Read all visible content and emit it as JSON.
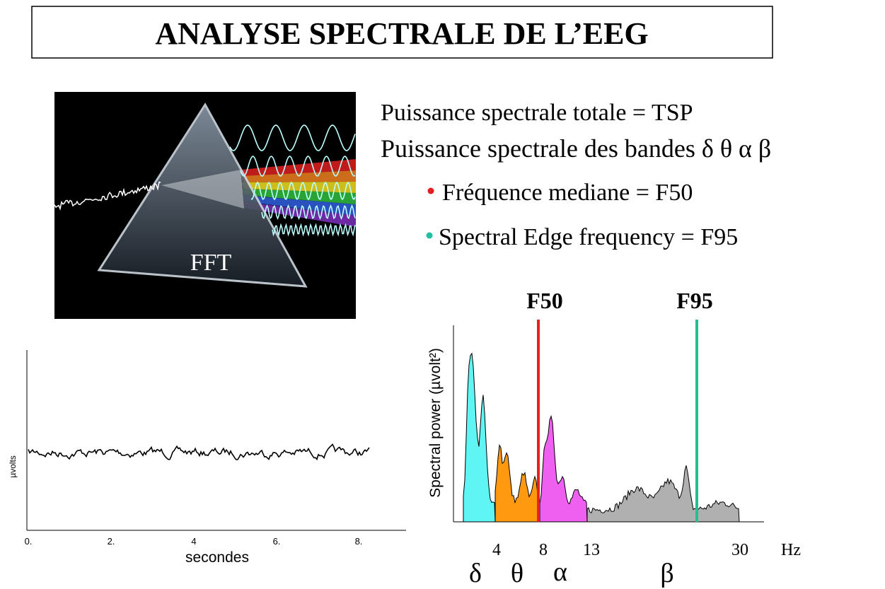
{
  "title": "ANALYSE SPECTRALE DE L’EEG",
  "prism": {
    "label": "FFT"
  },
  "definitions": [
    "Puissance spectrale totale = TSP",
    "Puissance spectrale des bandes δ θ α β"
  ],
  "bullets": [
    "Fréquence mediane = F50",
    "Spectral Edge frequency = F95"
  ],
  "eeg": {
    "y_label": "µvolts",
    "x_label": "secondes",
    "x_ticks": [
      "0.",
      "2.",
      "4",
      "6.",
      "8."
    ]
  },
  "spectrum": {
    "y_label": "Spectral power (µvolt²)",
    "markers": [
      "F50",
      "F95"
    ],
    "x_ticks": [
      "4",
      "8",
      "13",
      "30",
      "Hz"
    ],
    "bands": [
      "δ",
      "θ",
      "α",
      "β"
    ]
  }
}
